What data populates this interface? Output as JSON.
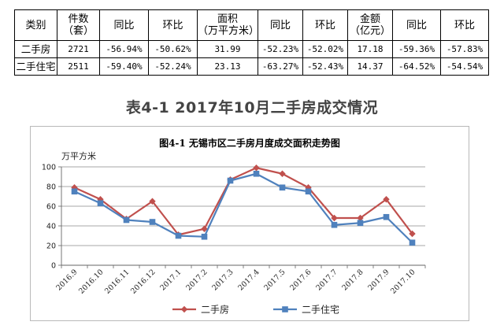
{
  "table": {
    "headers": [
      [
        "类别"
      ],
      [
        "件数",
        "（套）"
      ],
      [
        "同比"
      ],
      [
        "环比"
      ],
      [
        "面积",
        "（万平方米）"
      ],
      [
        "同比"
      ],
      [
        "环比"
      ],
      [
        "金额",
        "（亿元）"
      ],
      [
        "同比"
      ],
      [
        "环比"
      ]
    ],
    "rows": [
      [
        "二手房",
        "2721",
        "-56.94%",
        "-50.62%",
        "31.99",
        "-52.23%",
        "-52.02%",
        "17.18",
        "-59.36%",
        "-57.83%"
      ],
      [
        "二手住宅",
        "2511",
        "-59.40%",
        "-52.24%",
        "23.13",
        "-63.27%",
        "-52.43%",
        "14.37",
        "-64.52%",
        "-54.54%"
      ]
    ]
  },
  "table_title": "表4-1 2017年10月二手房成交情况",
  "chart_data": {
    "type": "line",
    "title": "图4-1   无锡市区二手房月度成交面积走势图",
    "ylabel": "万平方米",
    "xlabel": "",
    "categories": [
      "2016.9",
      "2016.10",
      "2016.11",
      "2016.12",
      "2017.1",
      "2017.2",
      "2017.3",
      "2017.4",
      "2017.5",
      "2017.6",
      "2017.7",
      "2017.8",
      "2017.9",
      "2017.10"
    ],
    "ylim": [
      0,
      100
    ],
    "yticks": [
      0,
      20,
      40,
      60,
      80,
      100
    ],
    "grid": true,
    "legend_position": "bottom",
    "series": [
      {
        "name": "二手房",
        "color": "#c0504d",
        "marker": "diamond",
        "values": [
          79,
          67,
          47,
          65,
          31,
          37,
          87,
          99,
          93,
          79,
          48,
          48,
          67,
          32
        ]
      },
      {
        "name": "二手住宅",
        "color": "#4f81bd",
        "marker": "square",
        "values": [
          75,
          63,
          46,
          44,
          30,
          29,
          86,
          93,
          79,
          75,
          41,
          43,
          49,
          23
        ]
      }
    ]
  }
}
